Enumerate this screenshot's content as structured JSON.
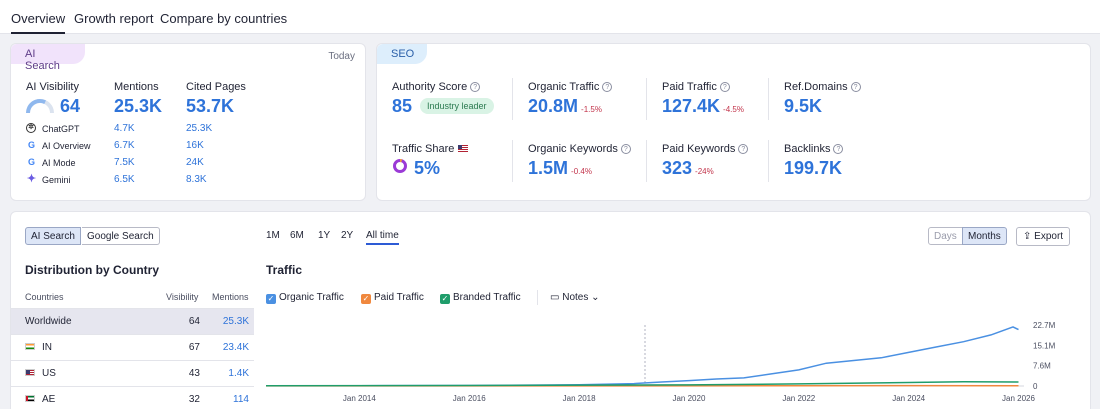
{
  "tabs": [
    {
      "label": "Overview",
      "active": true
    },
    {
      "label": "Growth report",
      "active": false
    },
    {
      "label": "Compare by countries",
      "active": false
    }
  ],
  "ai_search": {
    "pill": "AI Search",
    "date": "Today",
    "visibility_label": "AI Visibility",
    "visibility_value": "64",
    "visibility_fraction": 0.64,
    "mentions_label": "Mentions",
    "mentions_value": "25.3K",
    "cited_label": "Cited Pages",
    "cited_value": "53.7K",
    "sources": [
      {
        "name": "ChatGPT",
        "icon": "chatgpt-icon",
        "mentions": "4.7K",
        "cited": "25.3K"
      },
      {
        "name": "AI Overview",
        "icon": "google-icon",
        "mentions": "6.7K",
        "cited": "16K"
      },
      {
        "name": "AI Mode",
        "icon": "google-icon",
        "mentions": "7.5K",
        "cited": "24K"
      },
      {
        "name": "Gemini",
        "icon": "gemini-icon",
        "mentions": "6.5K",
        "cited": "8.3K"
      }
    ]
  },
  "seo": {
    "pill": "SEO",
    "authority_label": "Authority Score",
    "authority_value": "85",
    "authority_badge": "Industry leader",
    "organic_traffic_label": "Organic Traffic",
    "organic_traffic_value": "20.8M",
    "organic_traffic_delta": "-1.5%",
    "paid_traffic_label": "Paid Traffic",
    "paid_traffic_value": "127.4K",
    "paid_traffic_delta": "-4.5%",
    "ref_domains_label": "Ref.Domains",
    "ref_domains_value": "9.5K",
    "traffic_share_label": "Traffic Share",
    "traffic_share_value": "5%",
    "traffic_share_fraction": 0.05,
    "organic_keywords_label": "Organic Keywords",
    "organic_keywords_value": "1.5M",
    "organic_keywords_delta": "-0.4%",
    "paid_keywords_label": "Paid Keywords",
    "paid_keywords_value": "323",
    "paid_keywords_delta": "-24%",
    "backlinks_label": "Backlinks",
    "backlinks_value": "199.7K"
  },
  "filters": {
    "source_tabs": [
      "AI Search",
      "Google Search"
    ],
    "ranges": [
      "1M",
      "6M",
      "1Y",
      "2Y",
      "All time"
    ],
    "active_range": "All time",
    "granularity": [
      "Days",
      "Months"
    ],
    "export_label": "Export"
  },
  "distribution": {
    "title": "Distribution by Country",
    "col_country": "Countries",
    "col_visibility": "Visibility",
    "col_mentions": "Mentions",
    "rows": [
      {
        "country": "Worldwide",
        "visibility": "64",
        "mentions": "25.3K",
        "flag": ""
      },
      {
        "country": "IN",
        "visibility": "67",
        "mentions": "23.4K",
        "flag": "in-flag"
      },
      {
        "country": "US",
        "visibility": "43",
        "mentions": "1.4K",
        "flag": "us-flag"
      },
      {
        "country": "AE",
        "visibility": "32",
        "mentions": "114",
        "flag": "ae-flag"
      }
    ]
  },
  "traffic": {
    "title": "Traffic",
    "legend": [
      {
        "label": "Organic Traffic",
        "color": "#4a90e2"
      },
      {
        "label": "Paid Traffic",
        "color": "#f0883e"
      },
      {
        "label": "Branded Traffic",
        "color": "#1f9d6b"
      }
    ],
    "notes_label": "Notes"
  },
  "chart_data": {
    "type": "line",
    "title": "Traffic",
    "x_ticks": [
      "Jan 2014",
      "Jan 2016",
      "Jan 2018",
      "Jan 2020",
      "Jan 2022",
      "Jan 2024",
      "Jan 2026"
    ],
    "y_ticks": [
      "0",
      "7.6M",
      "15.1M",
      "22.7M"
    ],
    "ylim": [
      0,
      22.7
    ],
    "xlim": [
      2012.3,
      2026.1
    ],
    "grid": false,
    "legend_position": "top-left",
    "series": [
      {
        "name": "Organic Traffic",
        "color": "#4a90e2",
        "x": [
          2012.3,
          2014,
          2016,
          2018,
          2019,
          2019.5,
          2020,
          2020.5,
          2021,
          2021.5,
          2022,
          2022.5,
          2023,
          2023.5,
          2024,
          2024.5,
          2025,
          2025.5,
          2025.9,
          2026
        ],
        "y": [
          0.1,
          0.1,
          0.2,
          0.5,
          0.9,
          1.5,
          2.0,
          2.6,
          3.0,
          4.5,
          6.0,
          8.5,
          9.5,
          10.5,
          12.5,
          14.5,
          16.5,
          19.0,
          22.0,
          21.0
        ]
      },
      {
        "name": "Paid Traffic",
        "color": "#f0883e",
        "x": [
          2012.3,
          2018,
          2022,
          2024,
          2026
        ],
        "y": [
          0.05,
          0.05,
          0.1,
          0.15,
          0.13
        ]
      },
      {
        "name": "Branded Traffic",
        "color": "#1f9d6b",
        "x": [
          2012.3,
          2016,
          2020,
          2022,
          2024,
          2025,
          2026
        ],
        "y": [
          0.1,
          0.2,
          0.4,
          0.8,
          1.3,
          1.6,
          1.5
        ]
      }
    ]
  },
  "colors": {
    "accent": "#2e73d9",
    "negative": "#c2334a"
  }
}
